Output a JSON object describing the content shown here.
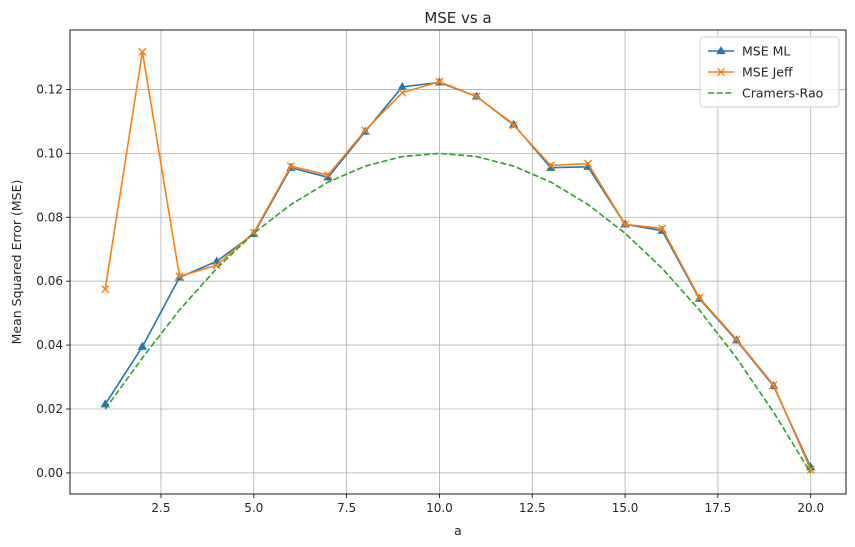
{
  "chart_data": {
    "type": "line",
    "title": "MSE vs a",
    "xlabel": "a",
    "ylabel": "Mean Squared Error (MSE)",
    "xlim": [
      0.05,
      20.95
    ],
    "ylim": [
      -0.0066,
      0.1386
    ],
    "xticks": [
      2.5,
      5.0,
      7.5,
      10.0,
      12.5,
      15.0,
      17.5,
      20.0
    ],
    "xtick_labels": [
      "2.5",
      "5.0",
      "7.5",
      "10.0",
      "12.5",
      "15.0",
      "17.5",
      "20.0"
    ],
    "yticks": [
      0.0,
      0.02,
      0.04,
      0.06,
      0.08,
      0.1,
      0.12
    ],
    "ytick_labels": [
      "0.00",
      "0.02",
      "0.04",
      "0.06",
      "0.08",
      "0.10",
      "0.12"
    ],
    "grid": true,
    "legend_position": "top-right",
    "x": [
      1,
      2,
      3,
      4,
      5,
      6,
      7,
      8,
      9,
      10,
      11,
      12,
      13,
      14,
      15,
      16,
      17,
      18,
      19,
      20
    ],
    "series": [
      {
        "name": "MSE ML",
        "color": "#1f77b4",
        "marker": "triangle",
        "style": "solid",
        "values": [
          0.0215,
          0.0395,
          0.0612,
          0.0662,
          0.0748,
          0.0955,
          0.0925,
          0.1068,
          0.1208,
          0.1222,
          0.1178,
          0.109,
          0.0955,
          0.0958,
          0.0778,
          0.0758,
          0.0545,
          0.0415,
          0.0272,
          0.0018
        ]
      },
      {
        "name": "MSE Jeff",
        "color": "#ff7f0e",
        "marker": "x",
        "style": "solid",
        "values": [
          0.0575,
          0.1318,
          0.0615,
          0.065,
          0.0752,
          0.096,
          0.0932,
          0.1072,
          0.119,
          0.1224,
          0.1178,
          0.1088,
          0.0962,
          0.0968,
          0.0778,
          0.0765,
          0.0548,
          0.0418,
          0.0275,
          0.001
        ]
      },
      {
        "name": "Cramers-Rao",
        "color": "#2ca02c",
        "marker": "none",
        "style": "dashed",
        "values": [
          0.02,
          0.036,
          0.051,
          0.064,
          0.075,
          0.084,
          0.091,
          0.096,
          0.099,
          0.1,
          0.099,
          0.096,
          0.091,
          0.084,
          0.075,
          0.064,
          0.051,
          0.036,
          0.019,
          0.0
        ]
      }
    ]
  }
}
